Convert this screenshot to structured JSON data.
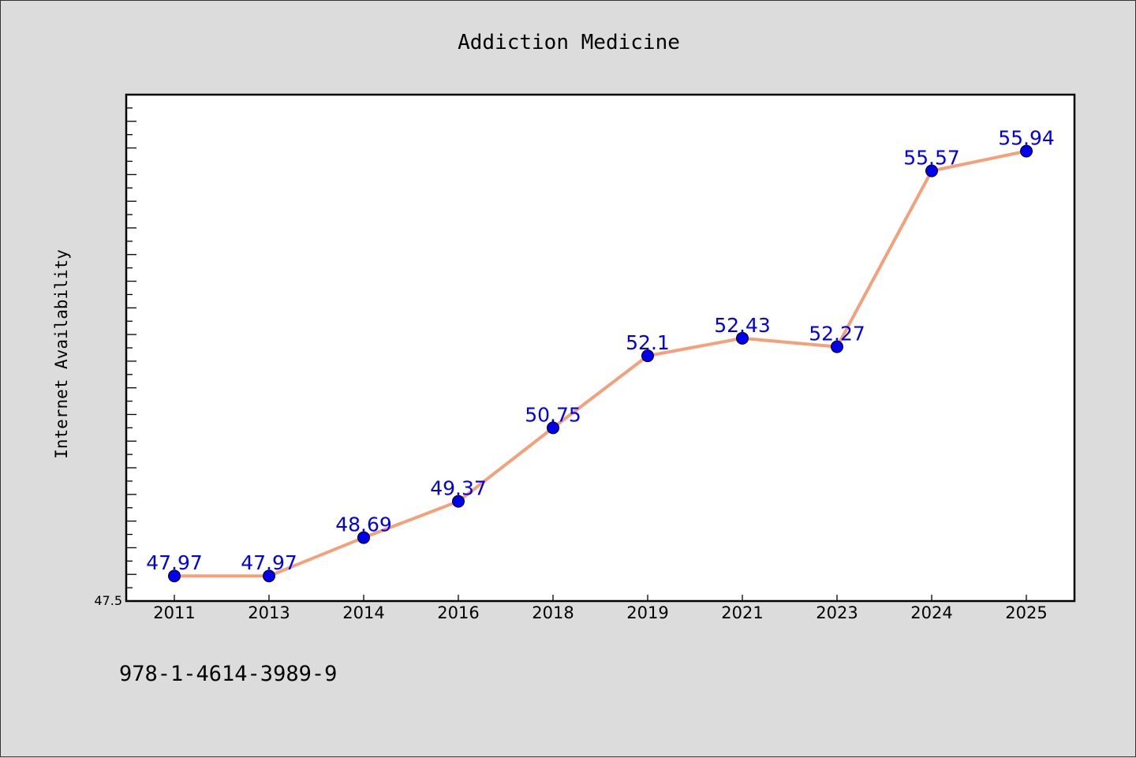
{
  "chart_data": {
    "type": "line",
    "title": "Addiction Medicine",
    "xlabel": "",
    "ylabel": "Internet Availability",
    "categories": [
      "2011",
      "2013",
      "2014",
      "2016",
      "2018",
      "2019",
      "2021",
      "2023",
      "2024",
      "2025"
    ],
    "series": [
      {
        "values": [
          47.97,
          47.97,
          48.69,
          49.37,
          50.75,
          52.1,
          52.43,
          52.27,
          55.57,
          55.94
        ]
      }
    ],
    "data_labels": [
      "47.97",
      "47.97",
      "48.69",
      "49.37",
      "50.75",
      "52.1",
      "52.43",
      "52.27",
      "55.57",
      "55.94"
    ],
    "ylim": [
      47.5,
      57.0
    ],
    "y_tick_labels": [
      "47.5"
    ],
    "grid": false,
    "line_color": "#f4a07a",
    "marker_color": "#0000ee",
    "label_color": "#0000ee"
  },
  "footer": {
    "text": "978-1-4614-3989-9"
  }
}
